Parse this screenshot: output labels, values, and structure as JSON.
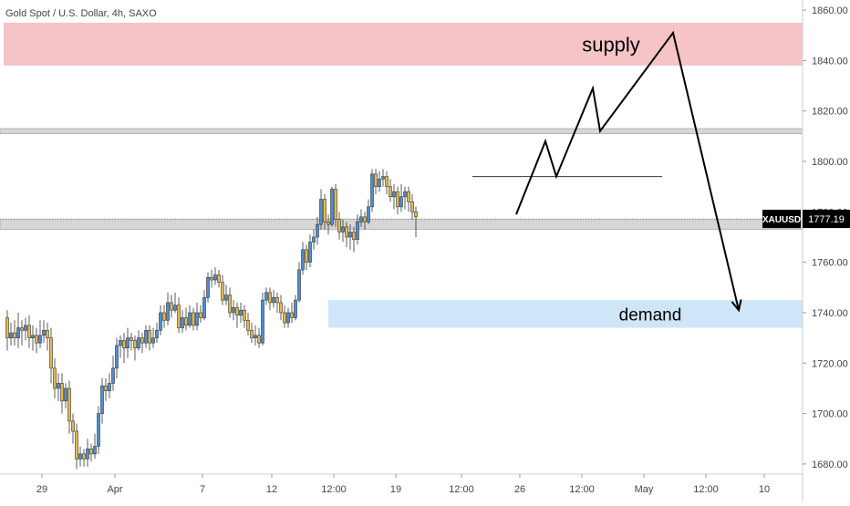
{
  "chart_data": {
    "type": "candlestick",
    "title": "Gold Spot / U.S. Dollar, 4h, SAXO",
    "symbol": "XAUUSD",
    "last_price": "1777.19",
    "ylim": [
      1676,
      1864
    ],
    "yticks": [
      "1860.00",
      "1840.00",
      "1820.00",
      "1800.00",
      "1780.00",
      "1760.00",
      "1740.00",
      "1720.00",
      "1700.00",
      "1680.00"
    ],
    "ytick_values": [
      1860,
      1840,
      1820,
      1800,
      1780,
      1760,
      1740,
      1720,
      1700,
      1680
    ],
    "xticks": [
      "29",
      "Apr",
      "7",
      "12",
      "12:00",
      "19",
      "12:00",
      "26",
      "12:00",
      "May",
      "12:00",
      "10"
    ],
    "xtick_bars": [
      10,
      30,
      54,
      73,
      90,
      107,
      125,
      141,
      158,
      175,
      192,
      208
    ],
    "colors": {
      "up": "#4a8fd4",
      "down": "#e6b84a",
      "wick": "#333333",
      "supply": "#f6c4c6",
      "demand": "#cfe6f9",
      "sr": "#cccccc",
      "path": "#000000"
    },
    "zones": [
      {
        "name": "supply",
        "from": 1838,
        "to": 1855,
        "bar_start": 0,
        "bar_end": 220
      },
      {
        "name": "demand",
        "from": 1734,
        "to": 1745,
        "bar_start": 89,
        "bar_end": 220
      }
    ],
    "sr_bands": [
      {
        "from": 1811,
        "to": 1813
      },
      {
        "from": 1773,
        "to": 1777
      }
    ],
    "resistance_line": {
      "value": 1794,
      "bar_start": 128,
      "bar_end": 180
    },
    "labels": {
      "supply": "supply",
      "demand": "demand"
    },
    "projected_path": [
      [
        140,
        1779
      ],
      [
        148,
        1808
      ],
      [
        151,
        1794
      ],
      [
        161,
        1829
      ],
      [
        163,
        1812
      ],
      [
        183,
        1851
      ],
      [
        201,
        1741
      ]
    ],
    "candles": [
      [
        1738,
        1730,
        1741,
        1725
      ],
      [
        1730,
        1732,
        1736,
        1727
      ],
      [
        1732,
        1730,
        1737,
        1727
      ],
      [
        1730,
        1734,
        1740,
        1726
      ],
      [
        1734,
        1733,
        1737,
        1727
      ],
      [
        1733,
        1735,
        1738,
        1729
      ],
      [
        1735,
        1730,
        1739,
        1726
      ],
      [
        1730,
        1731,
        1735,
        1725
      ],
      [
        1731,
        1728,
        1734,
        1724
      ],
      [
        1728,
        1731,
        1737,
        1726
      ],
      [
        1731,
        1733,
        1737,
        1728
      ],
      [
        1733,
        1730,
        1736,
        1725
      ],
      [
        1730,
        1718,
        1734,
        1712
      ],
      [
        1718,
        1710,
        1722,
        1706
      ],
      [
        1710,
        1712,
        1716,
        1705
      ],
      [
        1712,
        1705,
        1716,
        1700
      ],
      [
        1705,
        1710,
        1712,
        1702
      ],
      [
        1710,
        1697,
        1713,
        1692
      ],
      [
        1697,
        1693,
        1700,
        1688
      ],
      [
        1693,
        1682,
        1696,
        1678
      ],
      [
        1682,
        1684,
        1687,
        1679
      ],
      [
        1684,
        1682,
        1686,
        1679
      ],
      [
        1682,
        1686,
        1690,
        1679
      ],
      [
        1686,
        1684,
        1688,
        1681
      ],
      [
        1684,
        1687,
        1692,
        1682
      ],
      [
        1687,
        1700,
        1703,
        1684
      ],
      [
        1700,
        1711,
        1714,
        1696
      ],
      [
        1711,
        1709,
        1714,
        1705
      ],
      [
        1709,
        1712,
        1716,
        1706
      ],
      [
        1712,
        1718,
        1723,
        1709
      ],
      [
        1718,
        1727,
        1730,
        1714
      ],
      [
        1727,
        1729,
        1731,
        1722
      ],
      [
        1729,
        1726,
        1732,
        1720
      ],
      [
        1726,
        1730,
        1734,
        1722
      ],
      [
        1730,
        1729,
        1732,
        1725
      ],
      [
        1729,
        1726,
        1731,
        1721
      ],
      [
        1726,
        1730,
        1733,
        1725
      ],
      [
        1730,
        1728,
        1732,
        1724
      ],
      [
        1728,
        1733,
        1735,
        1726
      ],
      [
        1733,
        1728,
        1735,
        1725
      ],
      [
        1728,
        1730,
        1734,
        1726
      ],
      [
        1730,
        1733,
        1736,
        1728
      ],
      [
        1733,
        1740,
        1743,
        1731
      ],
      [
        1740,
        1737,
        1743,
        1734
      ],
      [
        1737,
        1744,
        1748,
        1735
      ],
      [
        1744,
        1741,
        1747,
        1738
      ],
      [
        1741,
        1743,
        1748,
        1740
      ],
      [
        1743,
        1734,
        1746,
        1732
      ],
      [
        1734,
        1738,
        1741,
        1732
      ],
      [
        1738,
        1735,
        1742,
        1733
      ],
      [
        1735,
        1740,
        1743,
        1734
      ],
      [
        1740,
        1735,
        1742,
        1733
      ],
      [
        1735,
        1740,
        1744,
        1733
      ],
      [
        1740,
        1738,
        1743,
        1736
      ],
      [
        1738,
        1746,
        1749,
        1737
      ],
      [
        1746,
        1754,
        1756,
        1744
      ],
      [
        1754,
        1753,
        1757,
        1750
      ],
      [
        1753,
        1755,
        1758,
        1751
      ],
      [
        1755,
        1752,
        1757,
        1750
      ],
      [
        1752,
        1745,
        1755,
        1743
      ],
      [
        1745,
        1747,
        1751,
        1743
      ],
      [
        1747,
        1740,
        1750,
        1738
      ],
      [
        1740,
        1742,
        1745,
        1737
      ],
      [
        1742,
        1739,
        1744,
        1734
      ],
      [
        1739,
        1741,
        1744,
        1736
      ],
      [
        1741,
        1737,
        1743,
        1734
      ],
      [
        1737,
        1733,
        1740,
        1731
      ],
      [
        1733,
        1730,
        1736,
        1728
      ],
      [
        1730,
        1731,
        1735,
        1727
      ],
      [
        1731,
        1728,
        1734,
        1726
      ],
      [
        1728,
        1745,
        1748,
        1727
      ],
      [
        1745,
        1748,
        1750,
        1743
      ],
      [
        1748,
        1744,
        1750,
        1741
      ],
      [
        1744,
        1746,
        1749,
        1742
      ],
      [
        1746,
        1744,
        1748,
        1740
      ],
      [
        1744,
        1740,
        1747,
        1737
      ],
      [
        1740,
        1736,
        1743,
        1734
      ],
      [
        1736,
        1740,
        1742,
        1734
      ],
      [
        1740,
        1738,
        1744,
        1736
      ],
      [
        1738,
        1745,
        1747,
        1737
      ],
      [
        1745,
        1757,
        1760,
        1744
      ],
      [
        1757,
        1765,
        1768,
        1755
      ],
      [
        1765,
        1760,
        1767,
        1757
      ],
      [
        1760,
        1768,
        1771,
        1758
      ],
      [
        1768,
        1770,
        1773,
        1765
      ],
      [
        1770,
        1775,
        1778,
        1767
      ],
      [
        1775,
        1785,
        1789,
        1773
      ],
      [
        1785,
        1776,
        1787,
        1773
      ],
      [
        1776,
        1775,
        1779,
        1771
      ],
      [
        1775,
        1789,
        1790,
        1774
      ],
      [
        1789,
        1777,
        1791,
        1774
      ],
      [
        1777,
        1772,
        1780,
        1769
      ],
      [
        1772,
        1774,
        1777,
        1768
      ],
      [
        1774,
        1770,
        1776,
        1766
      ],
      [
        1770,
        1772,
        1775,
        1765
      ],
      [
        1772,
        1769,
        1774,
        1764
      ],
      [
        1769,
        1776,
        1779,
        1767
      ],
      [
        1776,
        1778,
        1781,
        1774
      ],
      [
        1778,
        1776,
        1780,
        1773
      ],
      [
        1776,
        1782,
        1785,
        1775
      ],
      [
        1782,
        1795,
        1797,
        1780
      ],
      [
        1795,
        1790,
        1797,
        1787
      ],
      [
        1790,
        1793,
        1796,
        1788
      ],
      [
        1793,
        1794,
        1797,
        1790
      ],
      [
        1794,
        1790,
        1796,
        1787
      ],
      [
        1790,
        1786,
        1793,
        1784
      ],
      [
        1786,
        1788,
        1791,
        1781
      ],
      [
        1788,
        1782,
        1790,
        1779
      ],
      [
        1782,
        1786,
        1791,
        1780
      ],
      [
        1786,
        1788,
        1790,
        1781
      ],
      [
        1788,
        1784,
        1790,
        1780
      ],
      [
        1784,
        1780,
        1787,
        1777
      ],
      [
        1780,
        1778,
        1782,
        1770
      ]
    ]
  }
}
